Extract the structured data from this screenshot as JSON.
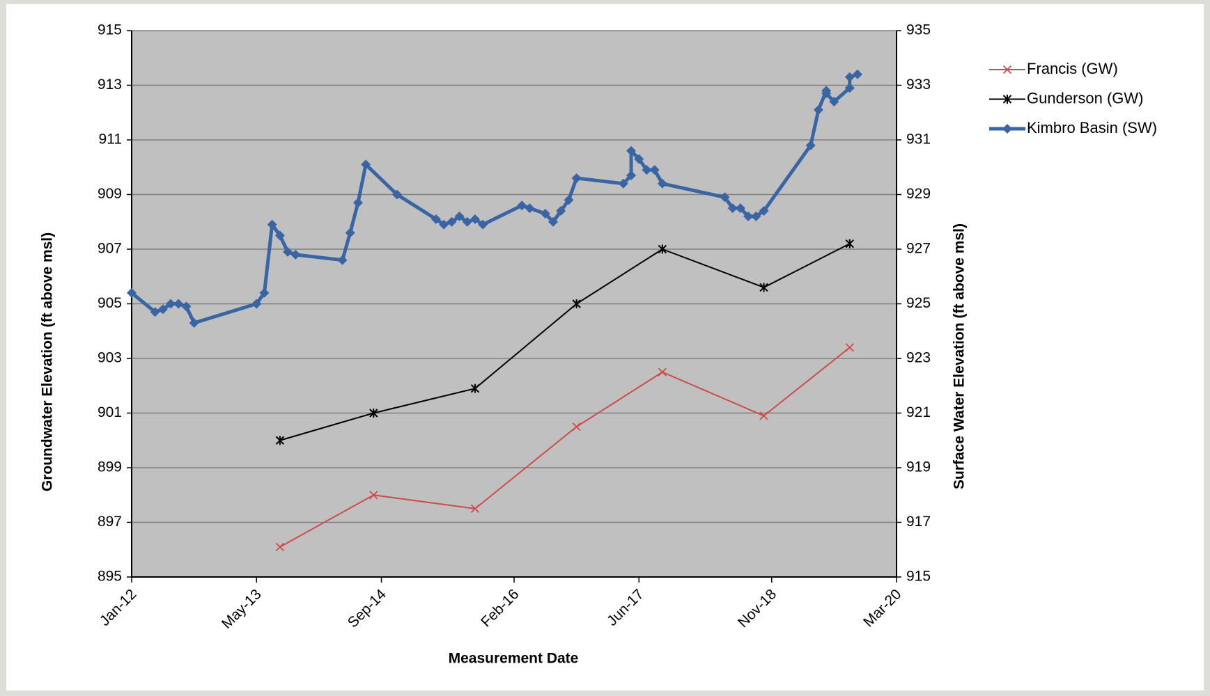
{
  "chart_data": {
    "type": "line",
    "x_label": "Measurement Date",
    "y_label": "Groundwater Elevation (ft above msl)",
    "y2_label": "Surface Water Elevation (ft above msl)",
    "xlim": [
      "2012-01",
      "2020-03"
    ],
    "xticks": [
      {
        "value": "2012-01",
        "label": "Jan-12"
      },
      {
        "value": "2013-05",
        "label": "May-13"
      },
      {
        "value": "2014-09",
        "label": "Sep-14"
      },
      {
        "value": "2016-02",
        "label": "Feb-16"
      },
      {
        "value": "2017-06",
        "label": "Jun-17"
      },
      {
        "value": "2018-11",
        "label": "Nov-18"
      },
      {
        "value": "2020-03",
        "label": "Mar-20"
      }
    ],
    "ylim": [
      895,
      915
    ],
    "yticks": [
      895,
      897,
      899,
      901,
      903,
      905,
      907,
      909,
      911,
      913,
      915
    ],
    "y2lim": [
      915,
      935
    ],
    "y2ticks": [
      915,
      917,
      919,
      921,
      923,
      925,
      927,
      929,
      931,
      933,
      935
    ],
    "grid": true,
    "legend": "right",
    "series": [
      {
        "name": "Francis (GW)",
        "color": "#cc4c4c",
        "marker": "x",
        "axis": "y",
        "x": [
          "2013-08",
          "2014-08",
          "2015-09",
          "2016-10",
          "2017-09",
          "2018-10",
          "2019-09"
        ],
        "values": [
          896.1,
          898.0,
          897.5,
          900.5,
          902.5,
          900.9,
          903.4
        ]
      },
      {
        "name": "Gunderson (GW)",
        "color": "#000000",
        "marker": "star",
        "axis": "y",
        "x": [
          "2013-08",
          "2014-08",
          "2015-09",
          "2016-10",
          "2017-09",
          "2018-10",
          "2019-09"
        ],
        "values": [
          900.0,
          901.0,
          901.9,
          905.0,
          907.0,
          905.6,
          907.2
        ]
      },
      {
        "name": "Kimbro Basin (SW)",
        "color": "#3a65a4",
        "marker": "diamond",
        "axis": "y2",
        "x": [
          "2012-01",
          "2012-04",
          "2012-05",
          "2012-06",
          "2012-07",
          "2012-08",
          "2012-09",
          "2013-05",
          "2013-06",
          "2013-07",
          "2013-08",
          "2013-09",
          "2013-10",
          "2014-04",
          "2014-05",
          "2014-06",
          "2014-07",
          "2014-11",
          "2015-04",
          "2015-05",
          "2015-06",
          "2015-07",
          "2015-08",
          "2015-09",
          "2015-10",
          "2016-03",
          "2016-04",
          "2016-06",
          "2016-07",
          "2016-08",
          "2016-09",
          "2016-10",
          "2017-04",
          "2017-05",
          "2017-05",
          "2017-06",
          "2017-07",
          "2017-08",
          "2017-09",
          "2018-05",
          "2018-06",
          "2018-07",
          "2018-08",
          "2018-09",
          "2018-10",
          "2019-04",
          "2019-05",
          "2019-06",
          "2019-06",
          "2019-07",
          "2019-09",
          "2019-09",
          "2019-10"
        ],
        "values": [
          925.4,
          924.7,
          924.8,
          925.0,
          925.0,
          924.9,
          924.3,
          925.0,
          925.4,
          927.9,
          927.5,
          926.9,
          926.8,
          926.6,
          927.6,
          928.7,
          930.1,
          929.0,
          928.1,
          927.9,
          928.0,
          928.2,
          928.0,
          928.1,
          927.9,
          928.6,
          928.5,
          928.3,
          928.0,
          928.4,
          928.8,
          929.6,
          929.4,
          929.7,
          930.6,
          930.3,
          929.9,
          929.9,
          929.4,
          928.9,
          928.5,
          928.5,
          928.2,
          928.2,
          928.4,
          930.8,
          932.1,
          932.8,
          932.7,
          932.4,
          932.9,
          933.3,
          933.4
        ]
      }
    ]
  }
}
